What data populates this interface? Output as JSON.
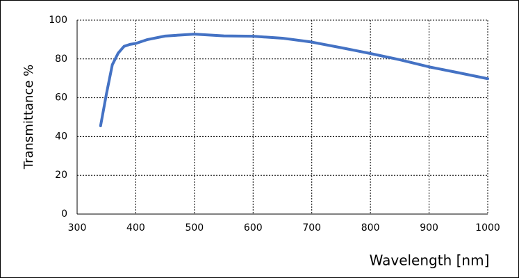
{
  "chart_data": {
    "type": "line",
    "xlabel": "Wavelength [nm]",
    "ylabel": "Transmittance %",
    "x": [
      340,
      350,
      360,
      370,
      380,
      390,
      400,
      420,
      450,
      500,
      550,
      600,
      650,
      700,
      750,
      800,
      850,
      900,
      950,
      1000
    ],
    "series": [
      {
        "name": "Transmittance",
        "color": "#4472c4",
        "values": [
          45.5,
          62,
          77,
          83,
          86.5,
          87.5,
          88,
          90,
          91.8,
          92.8,
          91.9,
          91.7,
          90.7,
          88.7,
          85.8,
          82.8,
          79.6,
          75.9,
          72.9,
          69.8
        ]
      }
    ],
    "xlim": [
      300,
      1000
    ],
    "xticks": [
      300,
      400,
      500,
      600,
      700,
      800,
      900,
      1000
    ],
    "ylim": [
      0,
      100
    ],
    "yticks": [
      0,
      20,
      40,
      60,
      80,
      100
    ],
    "grid": true
  }
}
